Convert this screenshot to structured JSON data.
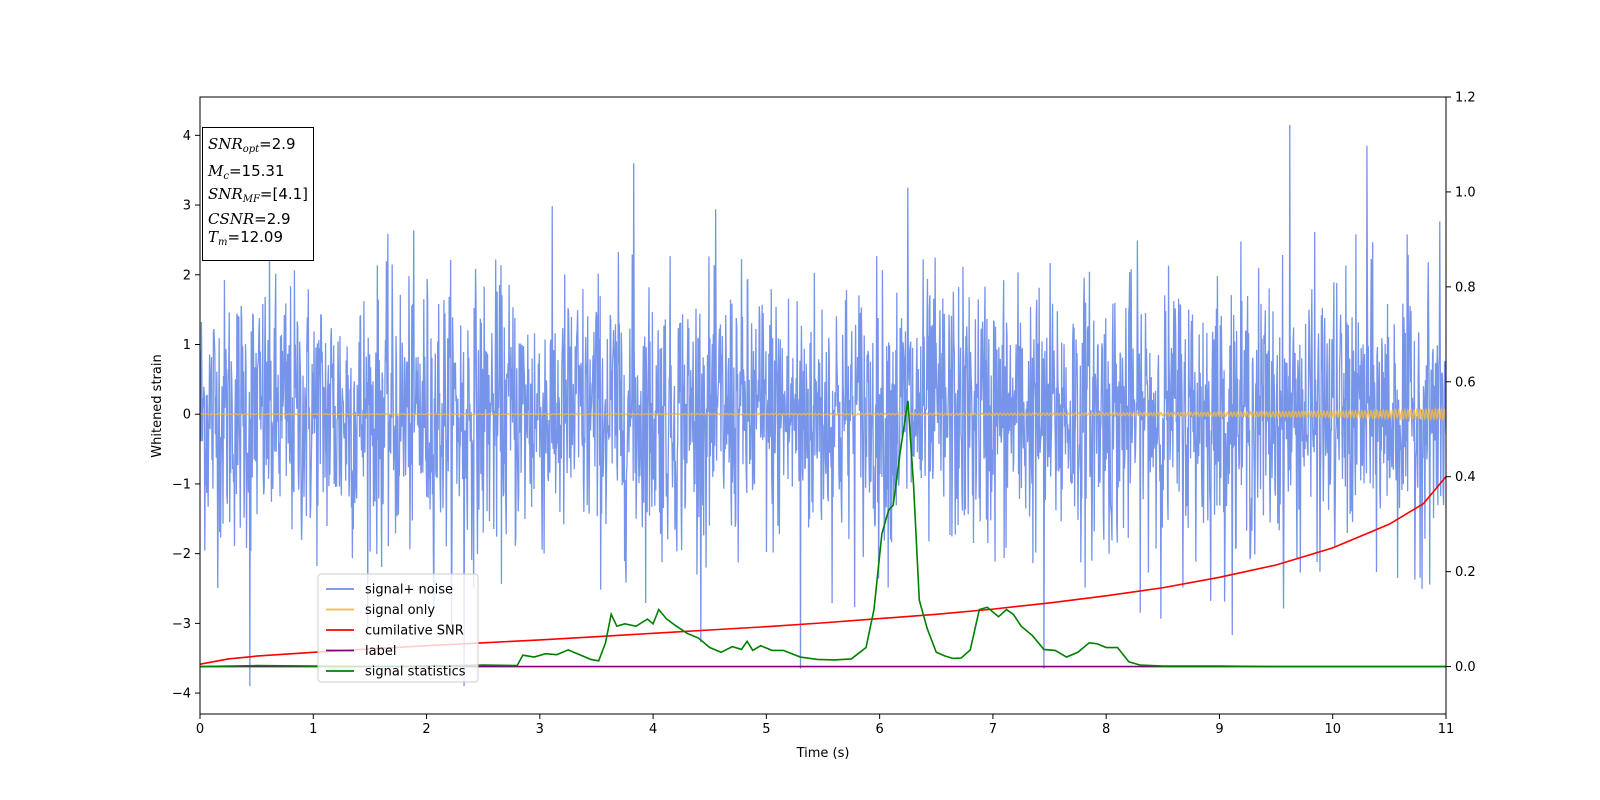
{
  "chart_data": {
    "type": "line",
    "title": "",
    "xlabel": "Time (s)",
    "ylabel": "Whitened strain",
    "xlim": [
      0,
      11
    ],
    "ylim": [
      -4.3,
      4.55
    ],
    "y2lim": [
      -0.1,
      1.2
    ],
    "x_ticks": [
      0,
      1,
      2,
      3,
      4,
      5,
      6,
      7,
      8,
      9,
      10,
      11
    ],
    "y_ticks": [
      -4,
      -3,
      -2,
      -1,
      0,
      1,
      2,
      3,
      4
    ],
    "y2_ticks": [
      "0.0",
      "0.2",
      "0.4",
      "0.6",
      "0.8",
      "1.0",
      "1.2"
    ],
    "grid": false,
    "legend_position": "lower-left",
    "annotation": {
      "snr_opt": "2.9",
      "mc": "15.31",
      "snr_mf": "[4.1]",
      "csnr": "2.9",
      "tm": "12.09"
    },
    "series": [
      {
        "name": "signal+ noise",
        "axis": "left",
        "color": "#6f8ee8",
        "description_values": "dense whitened strain noise, mostly within [-2.5, 3], occasional excursions",
        "peaks": [
          {
            "x": 3.83,
            "y": 3.6
          },
          {
            "x": 6.25,
            "y": 3.25
          },
          {
            "x": 9.62,
            "y": 4.15
          },
          {
            "x": 10.3,
            "y": 3.85
          },
          {
            "x": 0.44,
            "y": -3.9
          },
          {
            "x": 2.33,
            "y": -3.9
          },
          {
            "x": 7.45,
            "y": -3.65
          },
          {
            "x": 5.3,
            "y": -3.65
          }
        ]
      },
      {
        "name": "signal only",
        "axis": "left",
        "color": "#f5b942",
        "x": [
          0,
          2,
          4,
          6,
          8,
          9,
          10,
          10.5,
          11
        ],
        "amplitude": [
          0.005,
          0.005,
          0.008,
          0.012,
          0.02,
          0.03,
          0.045,
          0.06,
          0.08
        ]
      },
      {
        "name": "cumilative SNR",
        "axis": "right",
        "color": "#ff0000",
        "x": [
          0,
          0.25,
          0.5,
          1,
          1.5,
          2,
          2.5,
          3,
          3.5,
          4,
          4.5,
          5,
          5.5,
          6,
          6.5,
          7,
          7.5,
          8,
          8.5,
          9,
          9.5,
          10,
          10.5,
          10.8,
          11
        ],
        "values": [
          0.005,
          0.016,
          0.022,
          0.03,
          0.037,
          0.044,
          0.05,
          0.056,
          0.063,
          0.07,
          0.077,
          0.084,
          0.092,
          0.101,
          0.11,
          0.121,
          0.134,
          0.149,
          0.166,
          0.188,
          0.214,
          0.25,
          0.3,
          0.343,
          0.4
        ]
      },
      {
        "name": "label",
        "axis": "right",
        "color": "#800080",
        "x": [
          0,
          11
        ],
        "values": [
          0,
          0
        ]
      },
      {
        "name": "signal statistics",
        "axis": "right",
        "color": "#008000",
        "x": [
          0,
          0.5,
          1,
          1.5,
          2,
          2.3,
          2.5,
          2.8,
          2.85,
          2.95,
          3.05,
          3.15,
          3.25,
          3.35,
          3.45,
          3.52,
          3.58,
          3.63,
          3.68,
          3.75,
          3.85,
          3.95,
          4.0,
          4.05,
          4.12,
          4.2,
          4.3,
          4.4,
          4.5,
          4.6,
          4.7,
          4.78,
          4.83,
          4.88,
          4.95,
          5.05,
          5.15,
          5.3,
          5.45,
          5.6,
          5.75,
          5.88,
          5.95,
          6.02,
          6.08,
          6.12,
          6.18,
          6.25,
          6.3,
          6.35,
          6.42,
          6.5,
          6.58,
          6.65,
          6.72,
          6.8,
          6.88,
          6.95,
          7.05,
          7.12,
          7.18,
          7.25,
          7.35,
          7.45,
          7.55,
          7.65,
          7.75,
          7.85,
          7.92,
          8.0,
          8.1,
          8.2,
          8.3,
          8.5,
          9.0,
          9.5,
          10.0,
          11.0
        ],
        "values": [
          0.0,
          0.002,
          0.001,
          0.0,
          0.001,
          0.002,
          0.003,
          0.002,
          0.024,
          0.02,
          0.027,
          0.025,
          0.035,
          0.025,
          0.015,
          0.012,
          0.05,
          0.11,
          0.085,
          0.09,
          0.085,
          0.1,
          0.09,
          0.12,
          0.1,
          0.086,
          0.07,
          0.06,
          0.04,
          0.03,
          0.042,
          0.036,
          0.053,
          0.034,
          0.044,
          0.034,
          0.034,
          0.02,
          0.015,
          0.014,
          0.016,
          0.04,
          0.12,
          0.28,
          0.33,
          0.34,
          0.45,
          0.56,
          0.38,
          0.14,
          0.08,
          0.03,
          0.022,
          0.017,
          0.018,
          0.035,
          0.12,
          0.125,
          0.105,
          0.12,
          0.11,
          0.085,
          0.065,
          0.036,
          0.034,
          0.02,
          0.03,
          0.05,
          0.048,
          0.04,
          0.04,
          0.01,
          0.003,
          0.001,
          0.001,
          0.0,
          0.0,
          0.0
        ]
      }
    ]
  }
}
